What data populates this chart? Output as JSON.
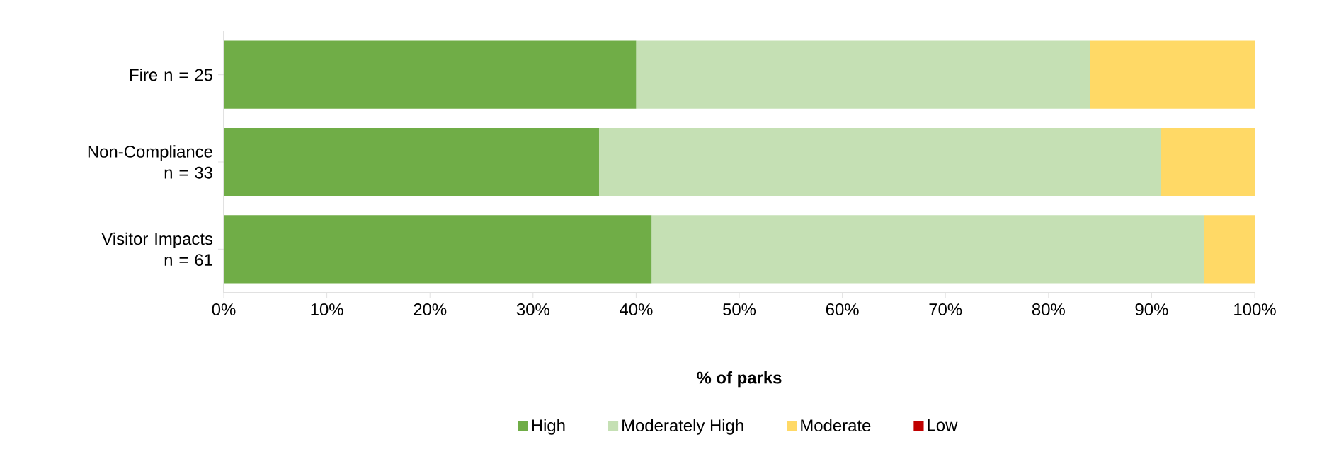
{
  "chart_data": {
    "type": "bar",
    "orientation": "horizontal",
    "stacked": true,
    "categories": [
      "Fire n = 25",
      "Non-Compliance n = 33",
      "Visitor Impacts n = 61"
    ],
    "series": [
      {
        "name": "High",
        "color": "#70ad47",
        "values": [
          40,
          36.4,
          41.5
        ]
      },
      {
        "name": "Moderately High",
        "color": "#c5e0b4",
        "values": [
          44,
          54.5,
          53.6
        ]
      },
      {
        "name": "Moderate",
        "color": "#ffd966",
        "values": [
          16,
          9.1,
          4.9
        ]
      },
      {
        "name": "Low",
        "color": "#c00000",
        "values": [
          0,
          0,
          0
        ]
      }
    ],
    "xlabel": "% of parks",
    "xlim": [
      0,
      100
    ],
    "xticks": [
      {
        "value": 0,
        "label": "0%"
      },
      {
        "value": 10,
        "label": "10%"
      },
      {
        "value": 20,
        "label": "20%"
      },
      {
        "value": 30,
        "label": "30%"
      },
      {
        "value": 40,
        "label": "40%"
      },
      {
        "value": 50,
        "label": "50%"
      },
      {
        "value": 60,
        "label": "60%"
      },
      {
        "value": 70,
        "label": "70%"
      },
      {
        "value": 80,
        "label": "80%"
      },
      {
        "value": 90,
        "label": "90%"
      },
      {
        "value": 100,
        "label": "100%"
      }
    ],
    "legend": "bottom"
  }
}
